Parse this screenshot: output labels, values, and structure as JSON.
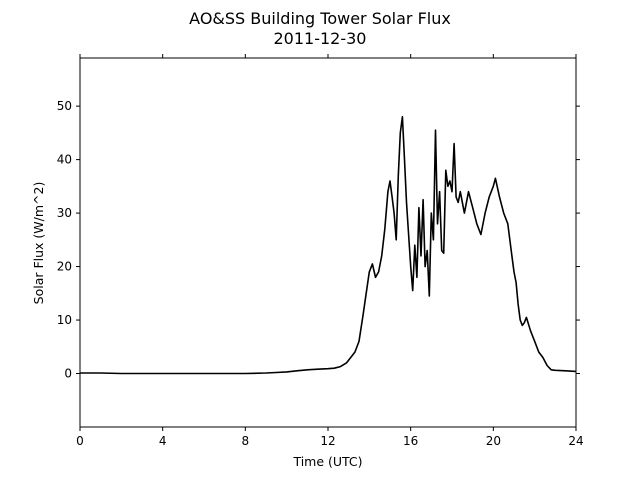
{
  "chart_data": {
    "type": "line",
    "title": "AO&SS Building Tower Solar Flux",
    "subtitle": "2011-12-30",
    "xlabel": "Time (UTC)",
    "ylabel": "Solar Flux (W/m^2)",
    "xlim": [
      0,
      24
    ],
    "ylim": [
      -10,
      59
    ],
    "xticks": [
      0,
      4,
      8,
      12,
      16,
      20,
      24
    ],
    "yticks": [
      0,
      10,
      20,
      30,
      40,
      50
    ],
    "grid": false,
    "line_color": "#000000",
    "series": [
      {
        "x": [
          0,
          1,
          2,
          3,
          4,
          5,
          6,
          7,
          8,
          9,
          9.5,
          10,
          10.5,
          11,
          11.5,
          12,
          12.3,
          12.6,
          12.9,
          13.1,
          13.3,
          13.5,
          13.7,
          13.85,
          14.0,
          14.15,
          14.3,
          14.45,
          14.6,
          14.75,
          14.9,
          15.0,
          15.1,
          15.2,
          15.3,
          15.4,
          15.5,
          15.6,
          15.7,
          15.8,
          15.9,
          16.0,
          16.1,
          16.2,
          16.3,
          16.4,
          16.5,
          16.6,
          16.7,
          16.8,
          16.9,
          17.0,
          17.1,
          17.2,
          17.3,
          17.4,
          17.5,
          17.6,
          17.7,
          17.8,
          17.9,
          18.0,
          18.1,
          18.2,
          18.3,
          18.4,
          18.6,
          18.8,
          19.0,
          19.2,
          19.4,
          19.6,
          19.8,
          20.0,
          20.1,
          20.3,
          20.5,
          20.7,
          20.9,
          21.0,
          21.1,
          21.2,
          21.3,
          21.4,
          21.5,
          21.6,
          21.8,
          22.0,
          22.2,
          22.4,
          22.6,
          22.8,
          23.0,
          23.5,
          24.0
        ],
        "y": [
          0.1,
          0.1,
          0.0,
          0.0,
          0.0,
          0.0,
          0.0,
          0.0,
          0.0,
          0.1,
          0.2,
          0.3,
          0.5,
          0.7,
          0.8,
          0.9,
          1.0,
          1.3,
          2.0,
          3.0,
          4.0,
          6.0,
          11.0,
          15.0,
          19.0,
          20.5,
          18.0,
          19.0,
          22.0,
          27.0,
          34.0,
          36.0,
          33.0,
          30.0,
          25.0,
          37.0,
          45.0,
          48.0,
          40.0,
          32.0,
          26.0,
          20.0,
          15.5,
          24.0,
          18.0,
          31.0,
          22.0,
          32.5,
          20.0,
          23.0,
          14.5,
          30.0,
          25.0,
          45.5,
          28.0,
          34.0,
          23.0,
          22.5,
          38.0,
          35.0,
          36.0,
          34.0,
          43.0,
          33.0,
          32.0,
          34.0,
          30.0,
          34.0,
          31.0,
          28.0,
          26.0,
          30.0,
          33.0,
          35.0,
          36.5,
          33.0,
          30.0,
          28.0,
          22.0,
          19.0,
          17.0,
          13.0,
          10.0,
          9.0,
          9.5,
          10.5,
          8.0,
          6.0,
          4.0,
          3.0,
          1.5,
          0.7,
          0.6,
          0.5,
          0.4
        ]
      }
    ]
  }
}
